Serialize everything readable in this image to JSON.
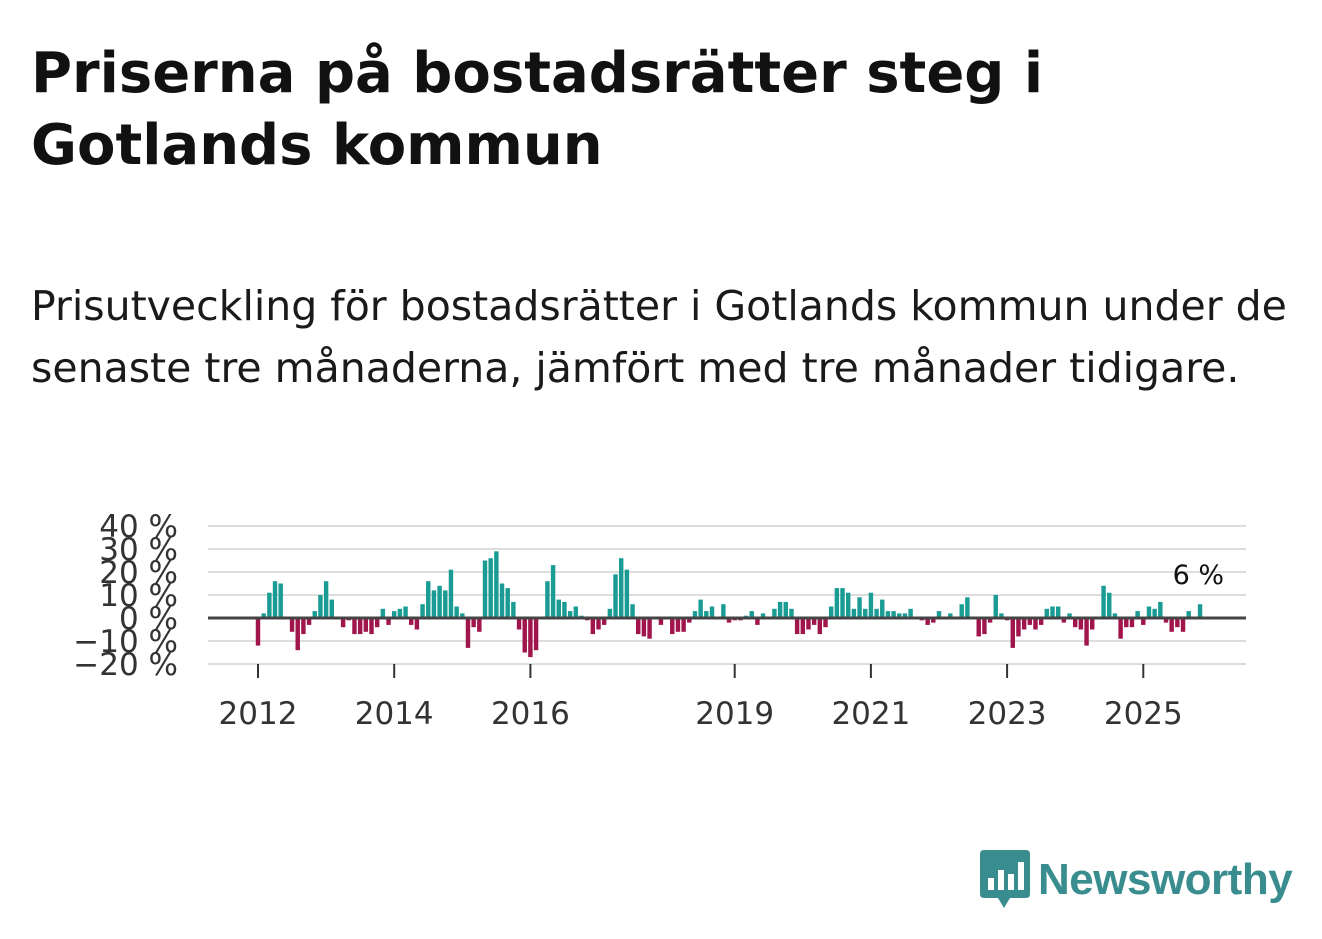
{
  "header": {
    "title": "Priserna på bostadsrätter steg i Gotlands kommun",
    "subtitle": "Prisutveckling för bostadsrätter i Gotlands kommun under de senaste tre månaderna, jämfört med tre månader tidigare."
  },
  "brand": {
    "name": "Newsworthy",
    "color": "#3a8d8f"
  },
  "colors": {
    "positive": "#1a9c94",
    "negative": "#a0154b",
    "grid": "#dddddd",
    "zero": "#444444"
  },
  "chart_data": {
    "type": "bar",
    "title": "Priserna på bostadsrätter steg i Gotlands kommun",
    "xlabel": "",
    "ylabel": "",
    "ylim": [
      -20,
      40
    ],
    "y_ticks": [
      {
        "value": 40,
        "label": "40 %"
      },
      {
        "value": 30,
        "label": "30 %"
      },
      {
        "value": 20,
        "label": "20 %"
      },
      {
        "value": 10,
        "label": "10 %"
      },
      {
        "value": 0,
        "label": "0 %"
      },
      {
        "value": -10,
        "label": "−10 %"
      },
      {
        "value": -20,
        "label": "−20 %"
      }
    ],
    "x_ticks": [
      {
        "index": 0,
        "label": "2012"
      },
      {
        "index": 24,
        "label": "2014"
      },
      {
        "index": 48,
        "label": "2016"
      },
      {
        "index": 84,
        "label": "2019"
      },
      {
        "index": 108,
        "label": "2021"
      },
      {
        "index": 132,
        "label": "2023"
      },
      {
        "index": 156,
        "label": "2025"
      }
    ],
    "start": "2012-01",
    "frequency": "monthly",
    "values": [
      -12,
      2,
      11,
      16,
      15,
      0,
      -6,
      -14,
      -7,
      -3,
      3,
      10,
      16,
      8,
      0,
      -4,
      -1,
      -7,
      -7,
      -6,
      -7,
      -4,
      4,
      -3,
      3,
      4,
      5,
      -3,
      -5,
      6,
      16,
      12,
      14,
      12,
      21,
      5,
      2,
      -13,
      -4,
      -6,
      25,
      26,
      29,
      15,
      13,
      7,
      -5,
      -15,
      -17,
      -14,
      0,
      16,
      23,
      8,
      7,
      3,
      5,
      1,
      -1,
      -7,
      -5,
      -3,
      4,
      19,
      26,
      21,
      6,
      -7,
      -8,
      -9,
      0,
      -3,
      0,
      -7,
      -6,
      -6,
      -2,
      3,
      8,
      3,
      5,
      0,
      6,
      -2,
      -1,
      -1,
      1,
      3,
      -3,
      2,
      0,
      4,
      7,
      7,
      4,
      -7,
      -7,
      -5,
      -3,
      -7,
      -4,
      5,
      13,
      13,
      11,
      4,
      9,
      4,
      11,
      4,
      8,
      3,
      3,
      2,
      2,
      4,
      0,
      -1,
      -3,
      -2,
      3,
      0,
      2,
      0,
      6,
      9,
      0,
      -8,
      -7,
      -2,
      10,
      2,
      -1,
      -13,
      -8,
      -5,
      -3,
      -5,
      -3,
      4,
      5,
      5,
      -2,
      2,
      -4,
      -5,
      -12,
      -5,
      0,
      14,
      11,
      2,
      -9,
      -4,
      -4,
      3,
      -3,
      5,
      4,
      7,
      -2,
      -6,
      -4,
      -6,
      3,
      0,
      6
    ],
    "last_label": "6 %"
  }
}
